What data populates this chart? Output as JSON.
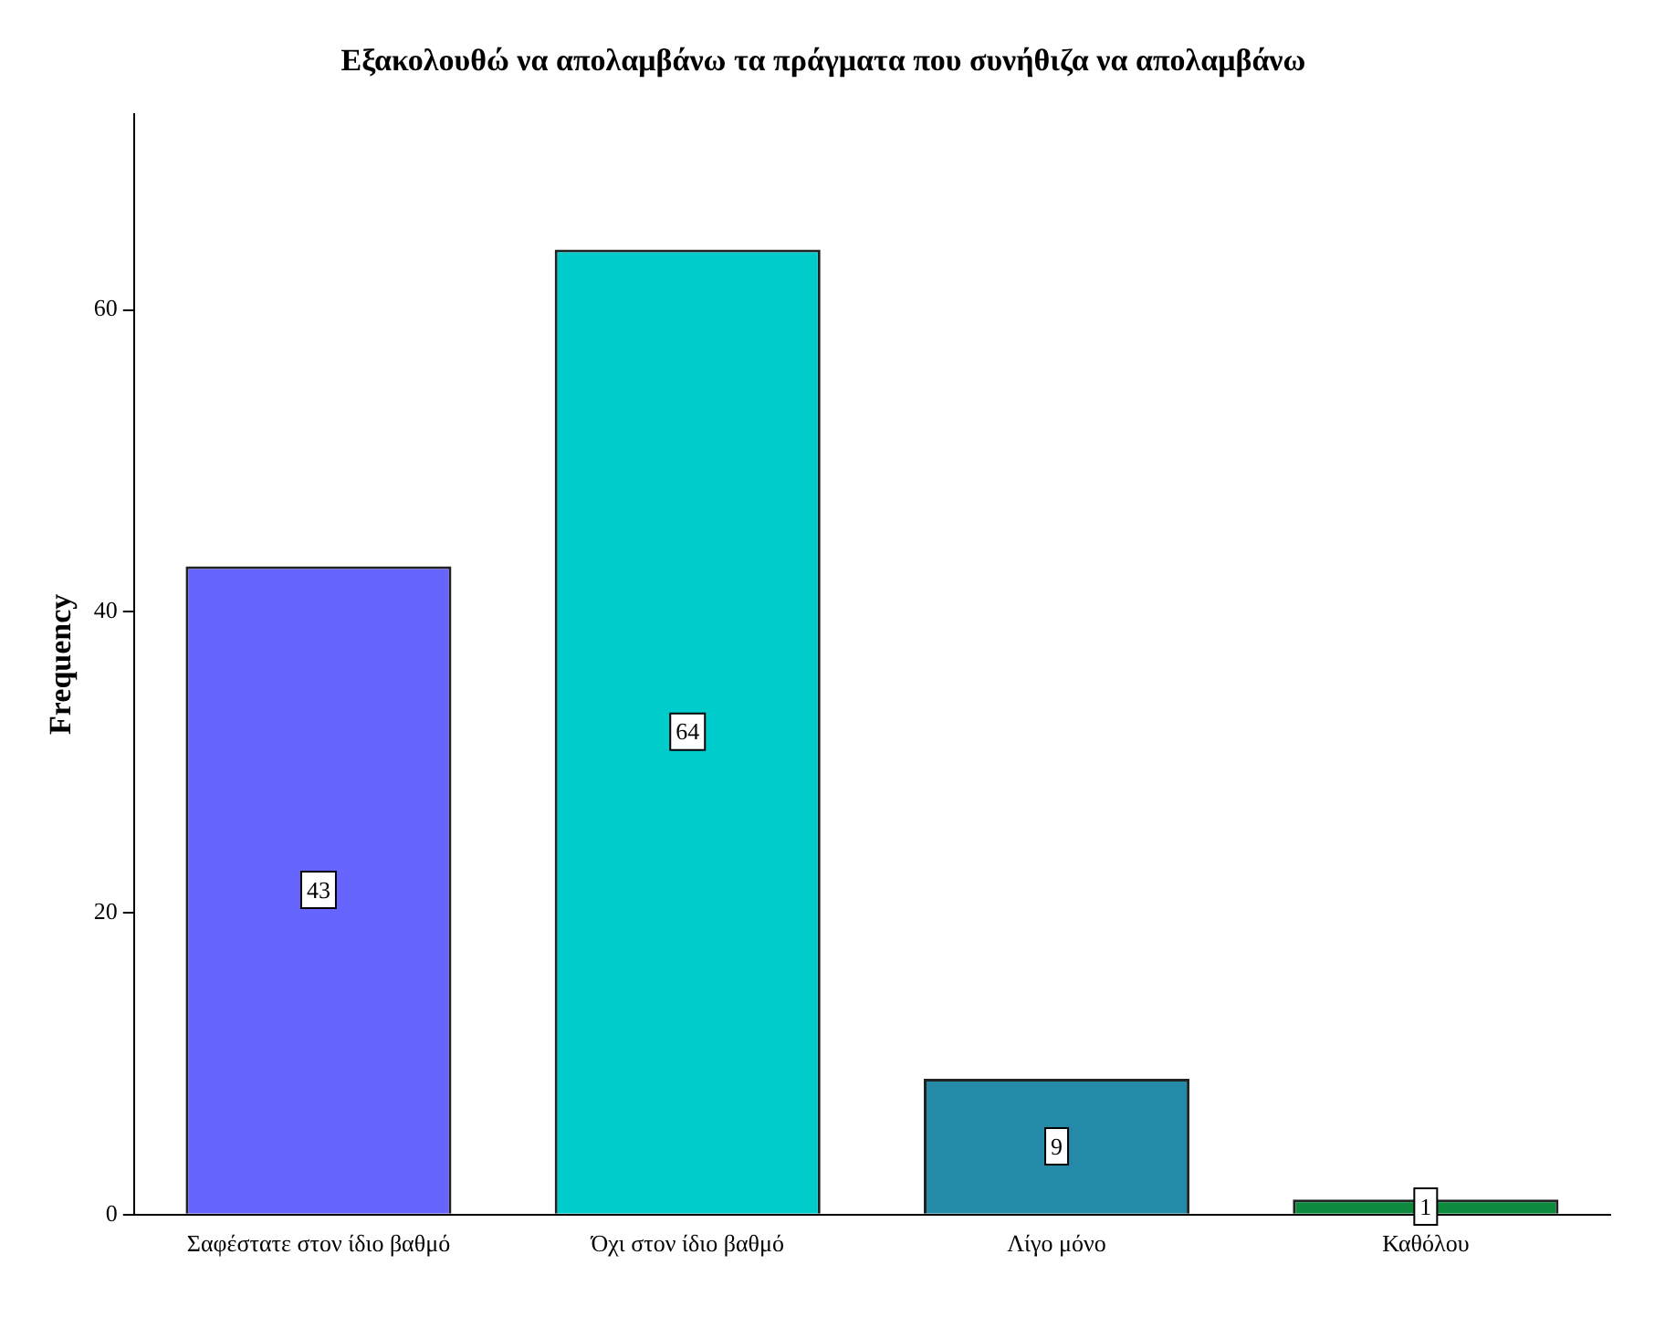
{
  "chart_data": {
    "type": "bar",
    "title": "Εξακολουθώ να απολαμβάνω τα πράγματα που συνήθιζα να απολαμβάνω",
    "ylabel": "Frequency",
    "categories": [
      "Σαφέστατε στον ίδιο βαθμό",
      "Όχι στον ίδιο βαθμό",
      "Λίγο μόνο",
      "Καθόλου"
    ],
    "values": [
      43,
      64,
      9,
      1
    ],
    "colors": [
      "#6666ff",
      "#00cccc",
      "#248aa8",
      "#0d8a3d"
    ],
    "ylim": [
      0,
      73
    ],
    "yticks": [
      0,
      20,
      40,
      60
    ],
    "grid": false,
    "legend": false,
    "data_labels": true
  }
}
